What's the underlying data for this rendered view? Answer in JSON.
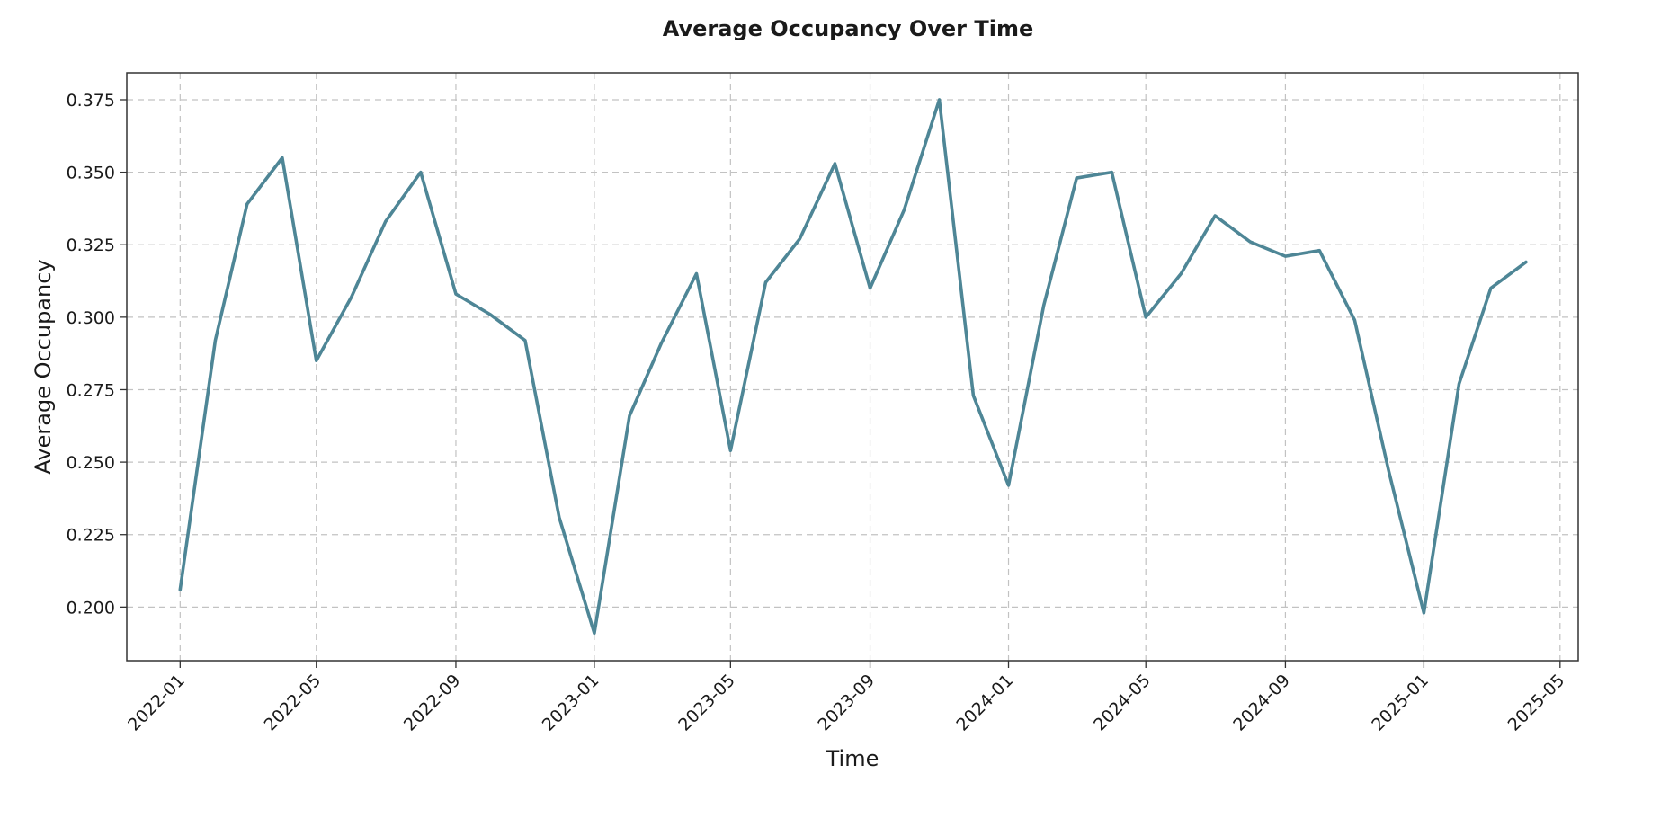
{
  "chart_data": {
    "type": "line",
    "title": "Average Occupancy Over Time",
    "xlabel": "Time",
    "ylabel": "Average Occupancy",
    "grid": true,
    "line_color": "#4e8696",
    "x_range": [
      "2021-11-15",
      "2025-05-17"
    ],
    "y_range": [
      0.1815,
      0.3843
    ],
    "x_ticks": [
      "2022-01",
      "2022-05",
      "2022-09",
      "2023-01",
      "2023-05",
      "2023-09",
      "2024-01",
      "2024-05",
      "2024-09",
      "2025-01",
      "2025-05"
    ],
    "y_ticks": [
      "0.200",
      "0.225",
      "0.250",
      "0.275",
      "0.300",
      "0.325",
      "0.350",
      "0.375"
    ],
    "series": [
      {
        "x": [
          "2022-01",
          "2022-02",
          "2022-03",
          "2022-04",
          "2022-05",
          "2022-06",
          "2022-07",
          "2022-08",
          "2022-09",
          "2022-10",
          "2022-11",
          "2022-12",
          "2023-01",
          "2023-02",
          "2023-03",
          "2023-04",
          "2023-05",
          "2023-06",
          "2023-07",
          "2023-08",
          "2023-09",
          "2023-10",
          "2023-11",
          "2023-12",
          "2024-01",
          "2024-02",
          "2024-03",
          "2024-04",
          "2024-05",
          "2024-06",
          "2024-07",
          "2024-08",
          "2024-09",
          "2024-10",
          "2024-11",
          "2024-12",
          "2025-01",
          "2025-02",
          "2025-03",
          "2025-04"
        ],
        "values": [
          0.206,
          0.292,
          0.339,
          0.355,
          0.285,
          0.307,
          0.333,
          0.35,
          0.308,
          0.301,
          0.292,
          0.231,
          0.191,
          0.266,
          0.291,
          0.315,
          0.254,
          0.312,
          0.327,
          0.353,
          0.31,
          0.337,
          0.375,
          0.273,
          0.242,
          0.304,
          0.348,
          0.35,
          0.3,
          0.315,
          0.335,
          0.326,
          0.321,
          0.323,
          0.299,
          0.247,
          0.198,
          0.277,
          0.31,
          0.319
        ]
      }
    ]
  }
}
